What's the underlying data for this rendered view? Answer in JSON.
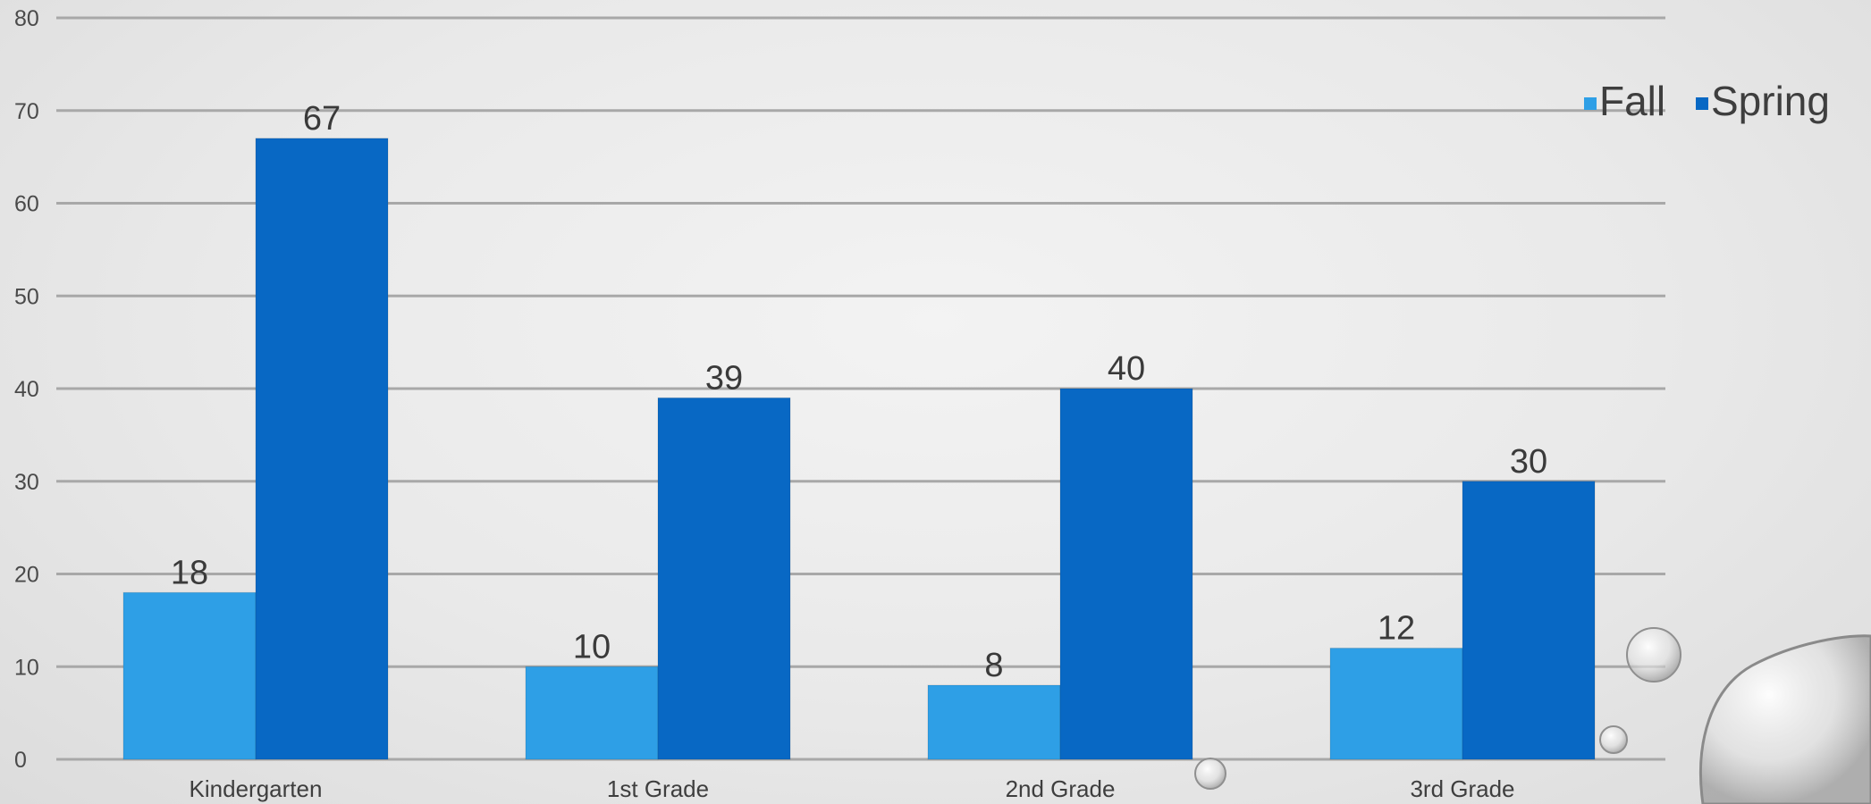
{
  "chart_data": {
    "type": "bar",
    "categories": [
      "Kindergarten",
      "1st Grade",
      "2nd Grade",
      "3rd Grade"
    ],
    "series": [
      {
        "name": "Fall",
        "values": [
          18,
          10,
          8,
          12
        ]
      },
      {
        "name": "Spring",
        "values": [
          67,
          39,
          40,
          30
        ]
      }
    ],
    "ylim": [
      0,
      80
    ],
    "yticks": [
      0,
      10,
      20,
      30,
      40,
      50,
      60,
      70,
      80
    ],
    "grid": true,
    "legend": "top-right",
    "colors": {
      "Fall": "#2e9fe6",
      "Spring": "#0868c4",
      "grid": "#a8a8a8"
    }
  }
}
